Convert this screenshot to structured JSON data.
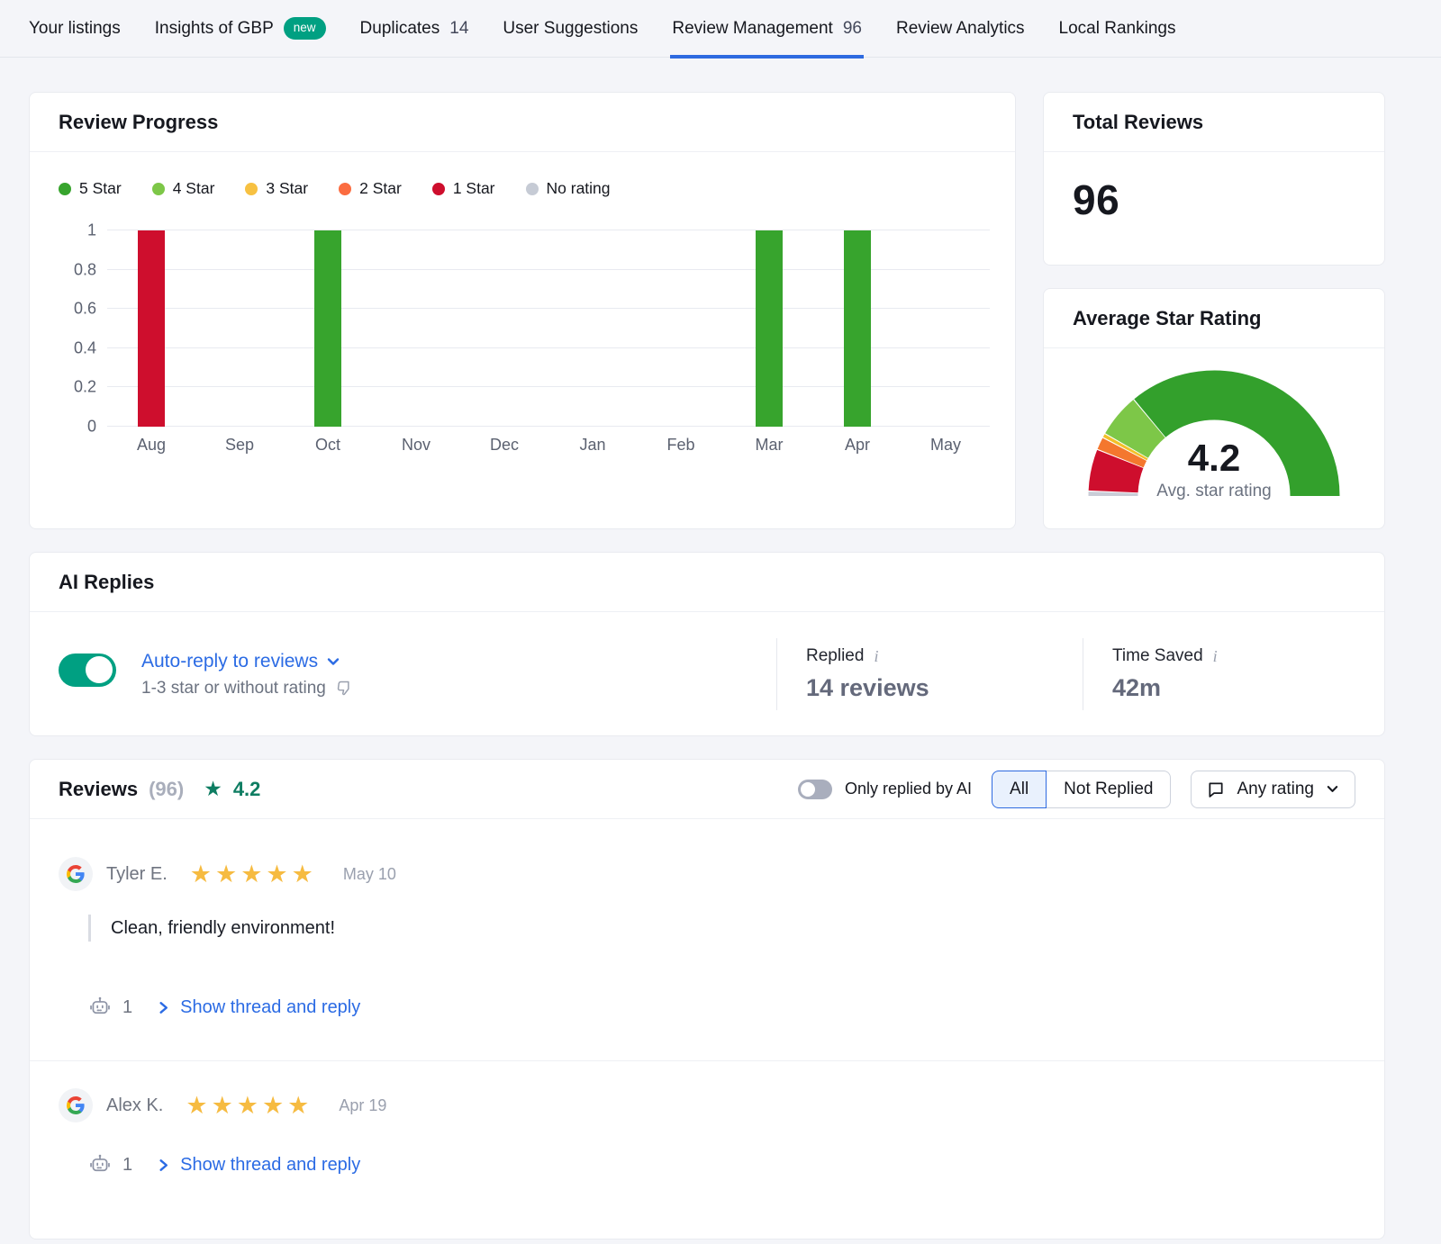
{
  "nav": {
    "items": [
      {
        "label": "Your listings"
      },
      {
        "label": "Insights of GBP",
        "badge": "new"
      },
      {
        "label": "Duplicates",
        "count": "14"
      },
      {
        "label": "User Suggestions"
      },
      {
        "label": "Review Management",
        "count": "96"
      },
      {
        "label": "Review Analytics"
      },
      {
        "label": "Local Rankings"
      }
    ],
    "active_index": 4
  },
  "review_progress": {
    "title": "Review Progress",
    "chart_data": {
      "type": "bar",
      "categories": [
        "Aug",
        "Sep",
        "Oct",
        "Nov",
        "Dec",
        "Jan",
        "Feb",
        "Mar",
        "Apr",
        "May"
      ],
      "series": [
        {
          "name": "5 Star",
          "color": "#37a42d",
          "values": [
            0,
            0,
            1,
            0,
            0,
            0,
            0,
            1,
            1,
            0
          ]
        },
        {
          "name": "4 Star",
          "color": "#7dc748",
          "values": [
            0,
            0,
            0,
            0,
            0,
            0,
            0,
            0,
            0,
            0
          ]
        },
        {
          "name": "3 Star",
          "color": "#f7c142",
          "values": [
            0,
            0,
            0,
            0,
            0,
            0,
            0,
            0,
            0,
            0
          ]
        },
        {
          "name": "2 Star",
          "color": "#fb6c40",
          "values": [
            0,
            0,
            0,
            0,
            0,
            0,
            0,
            0,
            0,
            0
          ]
        },
        {
          "name": "1 Star",
          "color": "#ce0e2d",
          "values": [
            1,
            0,
            0,
            0,
            0,
            0,
            0,
            0,
            0,
            0
          ]
        },
        {
          "name": "No rating",
          "color": "#c6cbd5",
          "values": [
            0,
            0,
            0,
            0,
            0,
            0,
            0,
            0,
            0,
            0
          ]
        }
      ],
      "ylim": [
        0,
        1
      ],
      "yticks": [
        0,
        0.2,
        0.4,
        0.6,
        0.8,
        1
      ],
      "grid": true,
      "legend_position": "top"
    }
  },
  "total_reviews": {
    "title": "Total Reviews",
    "value": "96"
  },
  "average_star_rating": {
    "title": "Average Star Rating",
    "value": "4.2",
    "caption": "Avg. star rating",
    "gauge_segments": [
      {
        "name": "no-rating",
        "color": "#c9cdd7",
        "from": 0,
        "to": 2
      },
      {
        "name": "1-star",
        "color": "#ce0e2d",
        "from": 2.5,
        "to": 21.5
      },
      {
        "name": "2-star",
        "color": "#f4772e",
        "from": 22,
        "to": 27.5
      },
      {
        "name": "3-star",
        "color": "#f2c028",
        "from": 28,
        "to": 29.5
      },
      {
        "name": "4-star",
        "color": "#7dc748",
        "from": 30,
        "to": 50
      },
      {
        "name": "5-star",
        "color": "#33a02c",
        "from": 50.5,
        "to": 180
      }
    ]
  },
  "ai_replies": {
    "title": "AI Replies",
    "toggle_on": true,
    "link_label": "Auto-reply to reviews",
    "subtitle": "1-3 star or without rating",
    "replied": {
      "label": "Replied",
      "value": "14 reviews"
    },
    "time_saved": {
      "label": "Time Saved",
      "value": "42m"
    }
  },
  "reviews": {
    "title": "Reviews",
    "count": "(96)",
    "avg_rating": "4.2",
    "ai_filter_label": "Only replied by AI",
    "filters": {
      "all": "All",
      "not_replied": "Not Replied",
      "selected": "All",
      "rating": "Any rating"
    },
    "items": [
      {
        "source": "Google",
        "name": "Tyler E.",
        "stars": 5,
        "date": "May 10",
        "comment": "Clean, friendly environment!",
        "ai_replies_count": "1",
        "action_label": "Show thread and reply"
      },
      {
        "source": "Google",
        "name": "Alex K.",
        "stars": 5,
        "date": "Apr 19",
        "comment": "",
        "ai_replies_count": "1",
        "action_label": "Show thread and reply"
      }
    ]
  }
}
